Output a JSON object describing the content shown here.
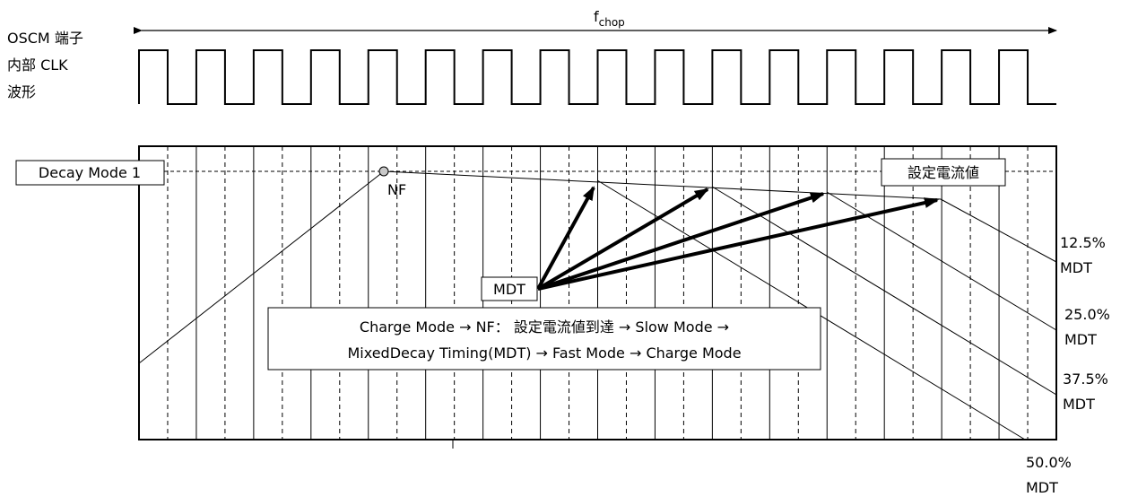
{
  "fchop": {
    "main": "f",
    "sub": "chop"
  },
  "clock_label": [
    "OSCM 端子",
    "内部 CLK",
    "波形"
  ],
  "clock_cycles": 16,
  "mode_label": "Decay Mode 1",
  "nf_label": "NF",
  "mdt_label": "MDT",
  "setpoint_label": "設定電流値",
  "mdt_levels": [
    {
      "pct": "12.5%",
      "unit": "MDT"
    },
    {
      "pct": "25.0%",
      "unit": "MDT"
    },
    {
      "pct": "37.5%",
      "unit": "MDT"
    },
    {
      "pct": "50.0%",
      "unit": "MDT"
    }
  ],
  "sequence_text": [
    "Charge Mode → NF： 設定電流値到達 → Slow Mode →",
    "MixedDecay Timing(MDT) → Fast Mode → Charge Mode"
  ]
}
